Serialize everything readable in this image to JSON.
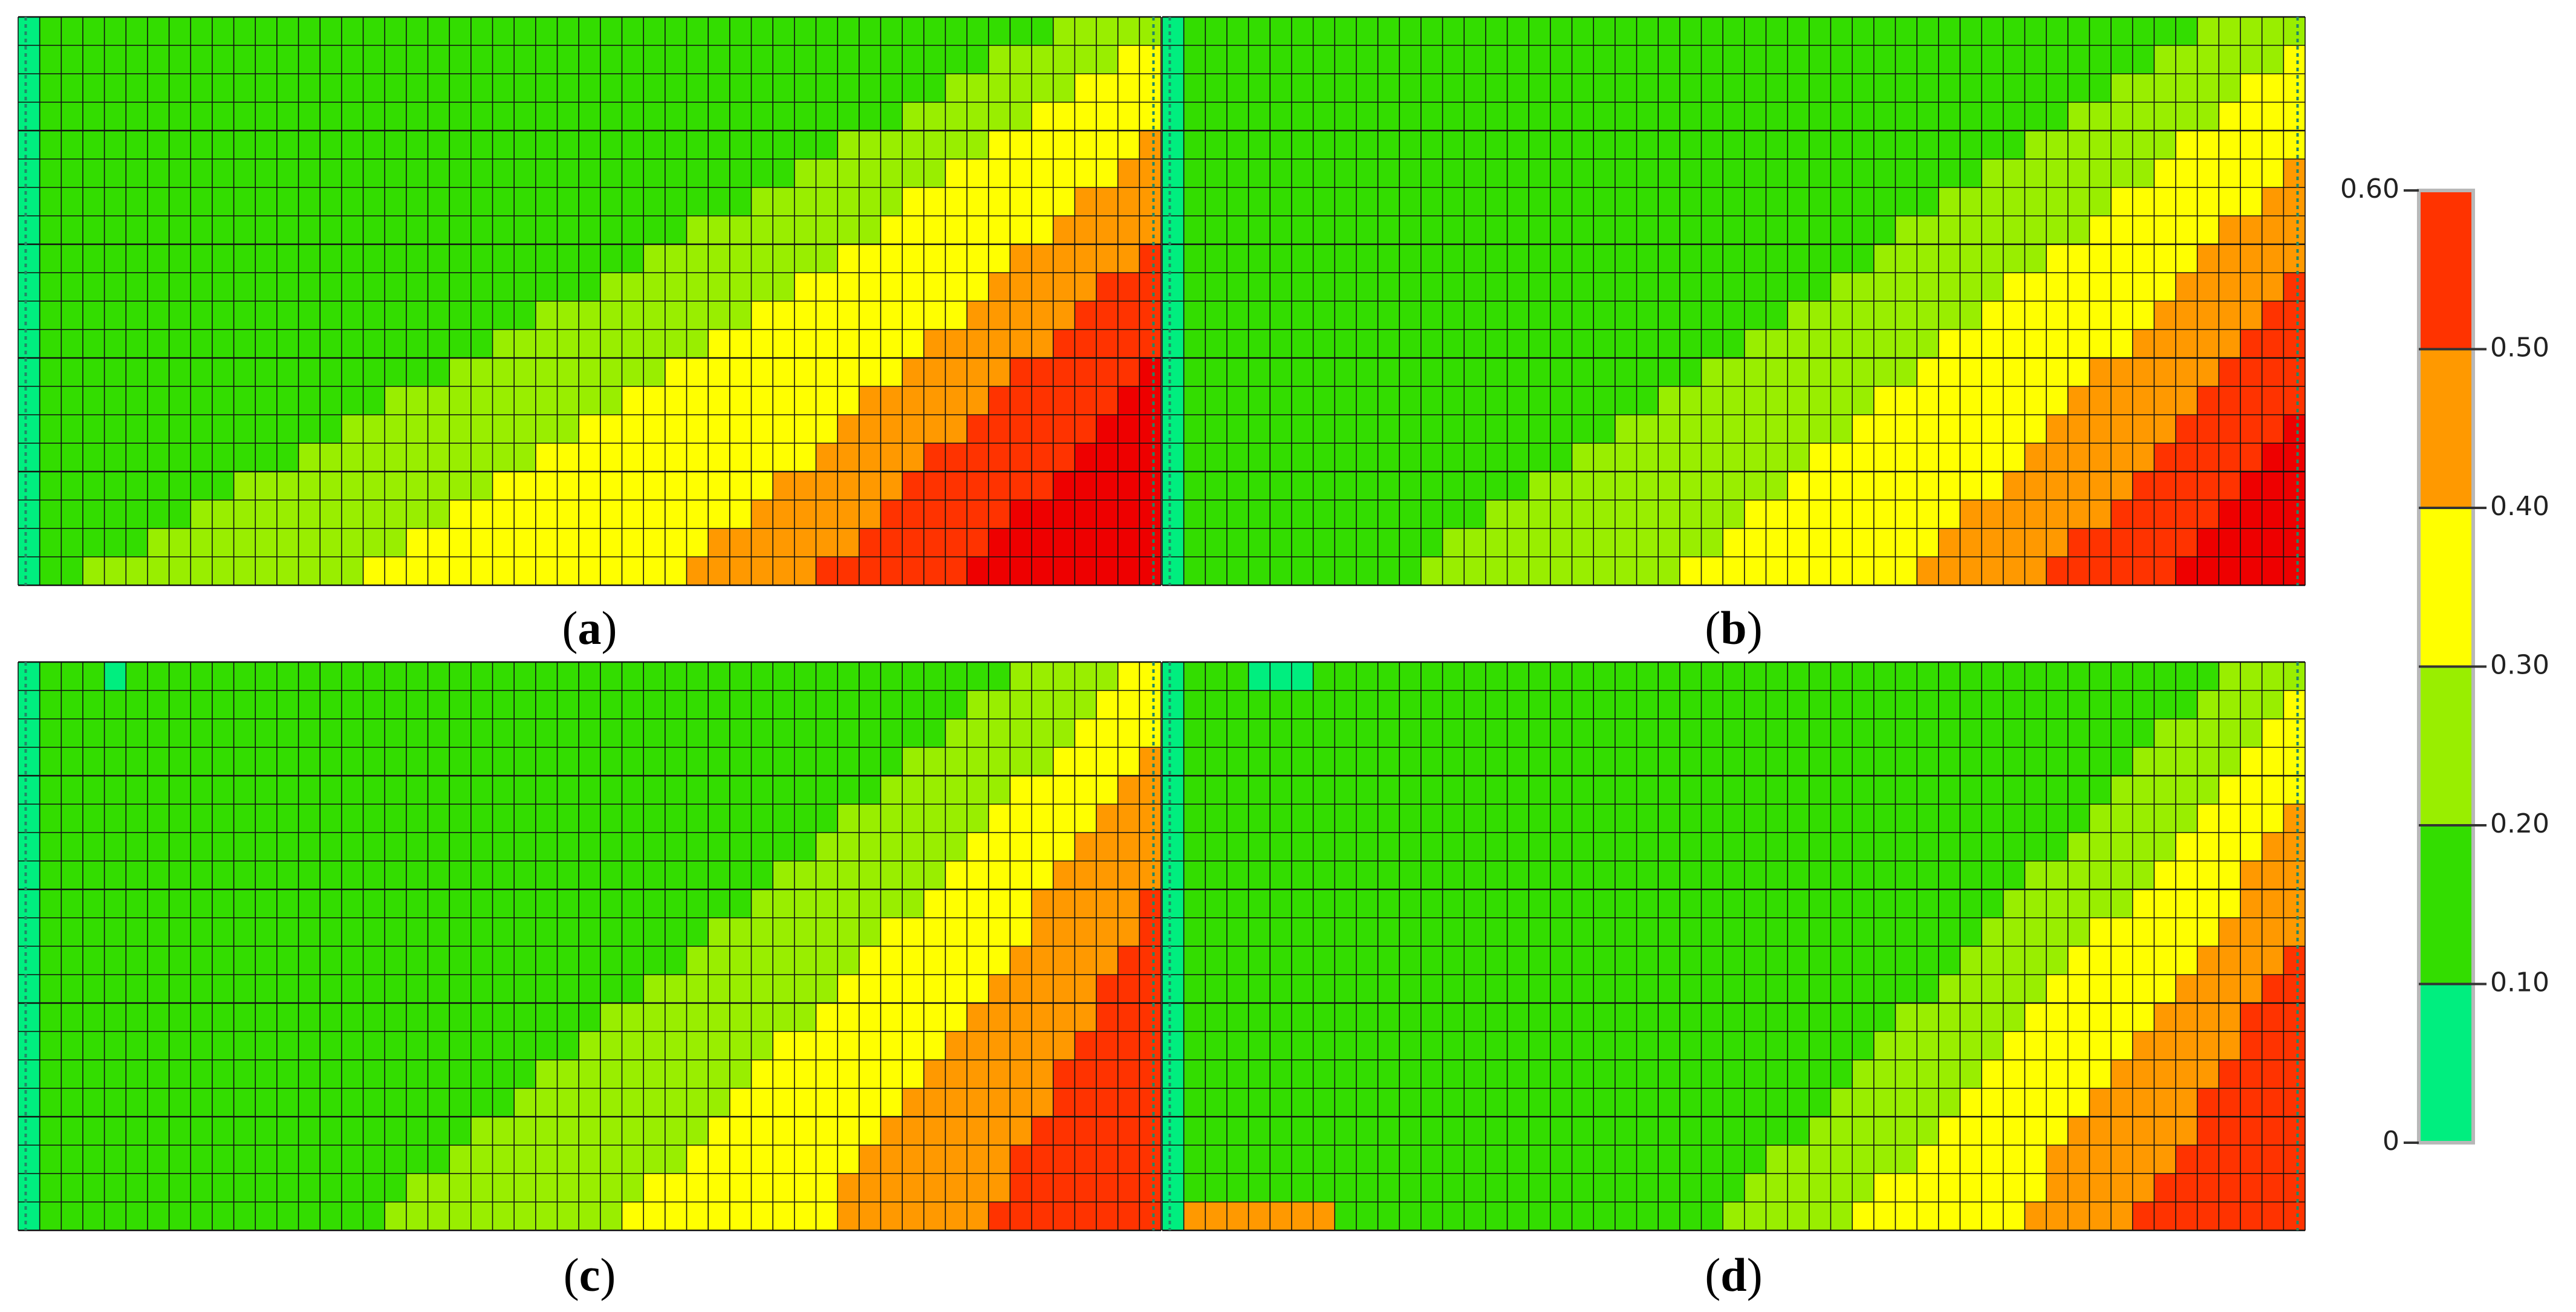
{
  "figure": {
    "panels": [
      {
        "label": "a",
        "caption_open": "(",
        "caption_close": ")"
      },
      {
        "label": "b",
        "caption_open": "(",
        "caption_close": ")"
      },
      {
        "label": "c",
        "caption_open": "(",
        "caption_close": ")"
      },
      {
        "label": "d",
        "caption_open": "(",
        "caption_close": ")"
      }
    ]
  },
  "chart_data": {
    "type": "heatmap",
    "grid": {
      "rows": 20,
      "cols": 53
    },
    "colorbar": {
      "min": 0,
      "max": 0.6,
      "ticks": [
        0,
        0.1,
        0.2,
        0.3,
        0.4,
        0.5,
        0.6
      ],
      "tick_labels": [
        "0",
        "0.10",
        "0.20",
        "0.30",
        "0.40",
        "0.50",
        "0.60"
      ],
      "bands": [
        {
          "from": 0.0,
          "to": 0.1,
          "color": "#00ee7f"
        },
        {
          "from": 0.1,
          "to": 0.2,
          "color": "#33dd00"
        },
        {
          "from": 0.2,
          "to": 0.3,
          "color": "#99ee00"
        },
        {
          "from": 0.3,
          "to": 0.4,
          "color": "#ffff00"
        },
        {
          "from": 0.4,
          "to": 0.5,
          "color": "#ff9900"
        },
        {
          "from": 0.5,
          "to": 0.6,
          "color": "#ff3300"
        }
      ]
    },
    "panels": [
      {
        "label": "a",
        "red_color": "#ee0000",
        "band_boundaries": {
          "0.2": [
            [
              0,
              0.92
            ],
            [
              20,
              0.04
            ]
          ],
          "0.3": [
            [
              0,
              1.02
            ],
            [
              20,
              0.29
            ]
          ],
          "0.4": [
            [
              0,
              1.1
            ],
            [
              20,
              0.57
            ]
          ],
          "0.5": [
            [
              0,
              1.18
            ],
            [
              20,
              0.69
            ]
          ],
          "0.6": [
            [
              0,
              1.27
            ],
            [
              20,
              0.82
            ]
          ]
        },
        "local_patches": []
      },
      {
        "label": "b",
        "red_color": "#ee0000",
        "band_boundaries": {
          "0.2": [
            [
              0,
              0.92
            ],
            [
              20,
              0.2
            ]
          ],
          "0.3": [
            [
              0,
              1.02
            ],
            [
              20,
              0.44
            ]
          ],
          "0.4": [
            [
              0,
              1.1
            ],
            [
              20,
              0.65
            ]
          ],
          "0.5": [
            [
              0,
              1.18
            ],
            [
              20,
              0.77
            ]
          ],
          "0.6": [
            [
              0,
              1.25
            ],
            [
              20,
              0.88
            ]
          ]
        },
        "local_patches": []
      },
      {
        "label": "c",
        "red_color": "#ff3300",
        "band_boundaries": {
          "0.2": [
            [
              0,
              0.88
            ],
            [
              20,
              0.3
            ]
          ],
          "0.3": [
            [
              0,
              0.98
            ],
            [
              20,
              0.52
            ]
          ],
          "0.4": [
            [
              0,
              1.04
            ],
            [
              20,
              0.7
            ]
          ],
          "0.5": [
            [
              0,
              1.1
            ],
            [
              20,
              0.84
            ]
          ],
          "0.6": [
            [
              0,
              9
            ],
            [
              1,
              9
            ]
          ]
        },
        "local_patches": [
          {
            "row": 0,
            "col_from": 4,
            "col_to": 4,
            "value": 0.05
          }
        ]
      },
      {
        "label": "d",
        "red_color": "#ff3300",
        "band_boundaries": {
          "0.2": [
            [
              0,
              0.93
            ],
            [
              20,
              0.48
            ]
          ],
          "0.3": [
            [
              0,
              1.02
            ],
            [
              20,
              0.6
            ]
          ],
          "0.4": [
            [
              0,
              1.08
            ],
            [
              20,
              0.74
            ]
          ],
          "0.5": [
            [
              0,
              1.12
            ],
            [
              20,
              0.85
            ]
          ],
          "0.6": [
            [
              0,
              9
            ],
            [
              1,
              9
            ]
          ]
        },
        "local_patches": [
          {
            "row": 0,
            "col_from": 4,
            "col_to": 6,
            "value": 0.05
          },
          {
            "row": 19,
            "col_from": 1,
            "col_to": 7,
            "value": 0.45
          }
        ]
      }
    ]
  }
}
